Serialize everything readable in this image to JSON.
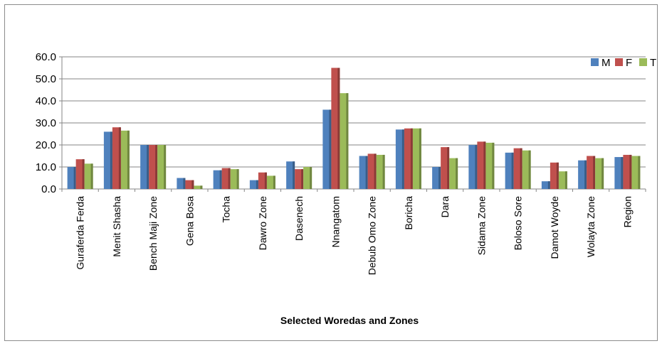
{
  "chart_data": {
    "type": "bar",
    "title": "",
    "xlabel": "Selected Woredas and Zones",
    "ylabel": "",
    "ylim": [
      0,
      60
    ],
    "yticks": [
      "0.0",
      "10.0",
      "20.0",
      "30.0",
      "40.0",
      "50.0",
      "60.0"
    ],
    "grid": true,
    "legend_position": "top-right",
    "categories": [
      "Guraferda Ferda",
      "Menit Shasha",
      "Bench Maji Zone",
      "Gena Bosa",
      "Tocha",
      "Dawro Zone",
      "Dasenech",
      "Nnangatom",
      "Debub Omo Zone",
      "Boricha",
      "Dara",
      "Sidama Zone",
      "Boloso Sore",
      "Damot Woyde",
      "Wolayta Zone",
      "Region"
    ],
    "series": [
      {
        "name": "M",
        "color": "#4f81bd",
        "values": [
          10.0,
          26.0,
          20.0,
          5.0,
          8.5,
          4.0,
          12.5,
          36.0,
          15.0,
          27.0,
          10.0,
          20.0,
          16.5,
          3.5,
          13.0,
          14.5
        ]
      },
      {
        "name": "F",
        "color": "#c0504d",
        "values": [
          13.5,
          28.0,
          20.0,
          4.0,
          9.5,
          7.5,
          9.0,
          55.0,
          16.0,
          27.5,
          19.0,
          21.5,
          18.5,
          12.0,
          15.0,
          15.5
        ]
      },
      {
        "name": "T",
        "color": "#9bbb59",
        "values": [
          11.5,
          26.5,
          20.0,
          1.5,
          9.0,
          6.0,
          10.0,
          43.5,
          15.5,
          27.5,
          14.0,
          21.0,
          17.5,
          8.0,
          14.0,
          15.0
        ]
      }
    ]
  }
}
